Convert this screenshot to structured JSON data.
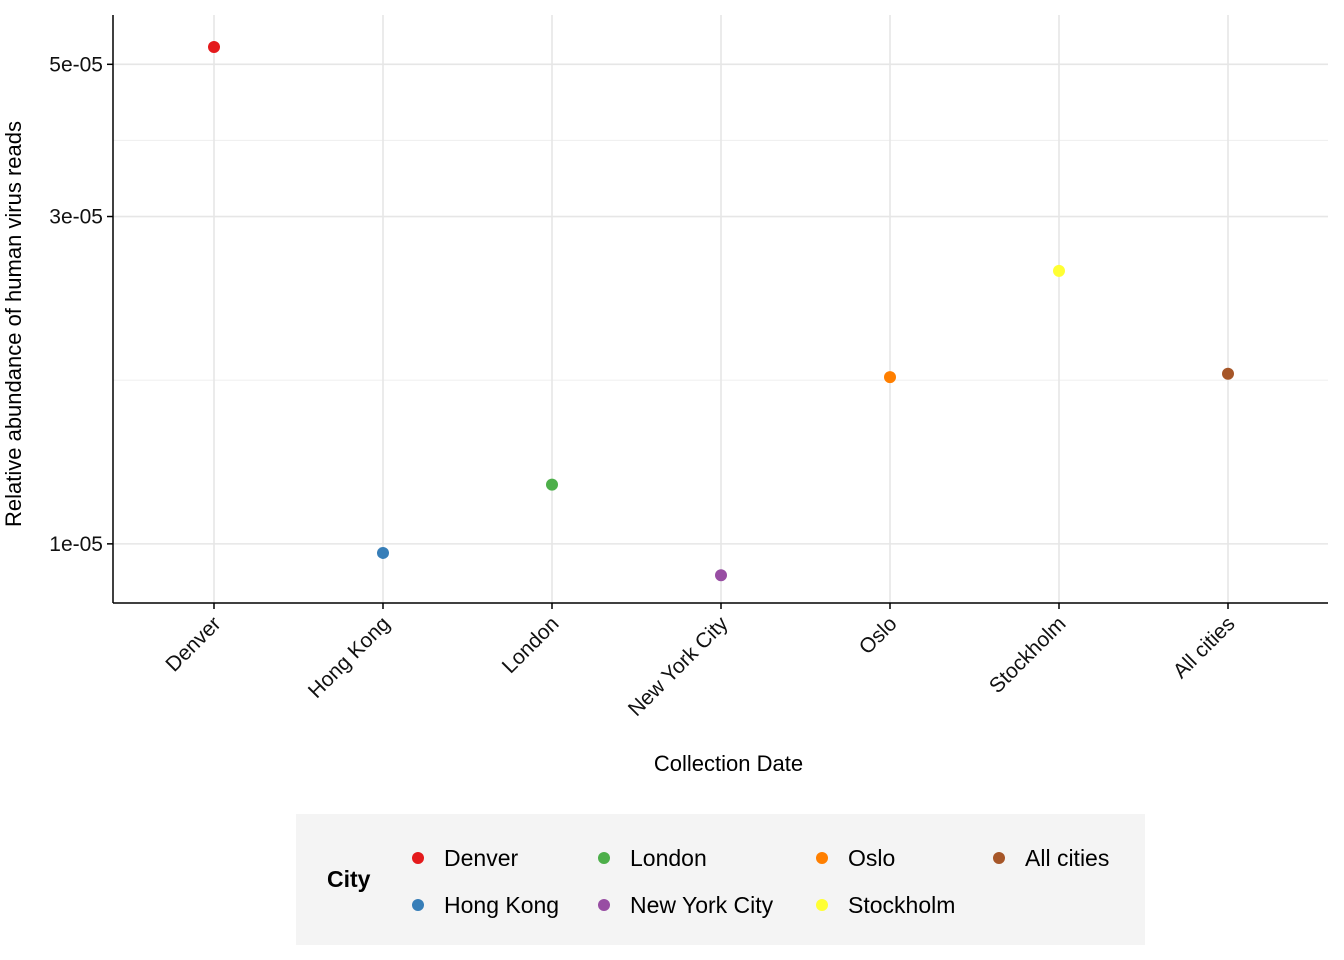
{
  "chart_data": {
    "type": "scatter",
    "xlabel": "Collection Date",
    "ylabel": "Relative abundance of human virus reads",
    "y_scale": "log",
    "y_ticks": [
      {
        "value": 1e-05,
        "label": "1e-05"
      },
      {
        "value": 3e-05,
        "label": "3e-05"
      },
      {
        "value": 5e-05,
        "label": "5e-05"
      }
    ],
    "ylim": [
      8.2e-06,
      5.9e-05
    ],
    "grid": true,
    "categories": [
      "Denver",
      "Hong Kong",
      "London",
      "New York City",
      "Oslo",
      "Stockholm",
      "All cities"
    ],
    "points": [
      {
        "category": "Denver",
        "y": 5.3e-05,
        "color": "#E41A1C"
      },
      {
        "category": "Hong Kong",
        "y": 9.7e-06,
        "color": "#377EB8"
      },
      {
        "category": "London",
        "y": 1.22e-05,
        "color": "#4DAF4A"
      },
      {
        "category": "New York City",
        "y": 9e-06,
        "color": "#984EA3"
      },
      {
        "category": "Oslo",
        "y": 1.75e-05,
        "color": "#FF7F00"
      },
      {
        "category": "Stockholm",
        "y": 2.5e-05,
        "color": "#FFFF33"
      },
      {
        "category": "All cities",
        "y": 1.77e-05,
        "color": "#A65628"
      }
    ],
    "legend": {
      "title": "City",
      "position": "bottom",
      "entries": [
        {
          "label": "Denver",
          "color": "#E41A1C"
        },
        {
          "label": "Hong Kong",
          "color": "#377EB8"
        },
        {
          "label": "London",
          "color": "#4DAF4A"
        },
        {
          "label": "New York City",
          "color": "#984EA3"
        },
        {
          "label": "Oslo",
          "color": "#FF7F00"
        },
        {
          "label": "Stockholm",
          "color": "#FFFF33"
        },
        {
          "label": "All cities",
          "color": "#A65628"
        }
      ]
    }
  }
}
